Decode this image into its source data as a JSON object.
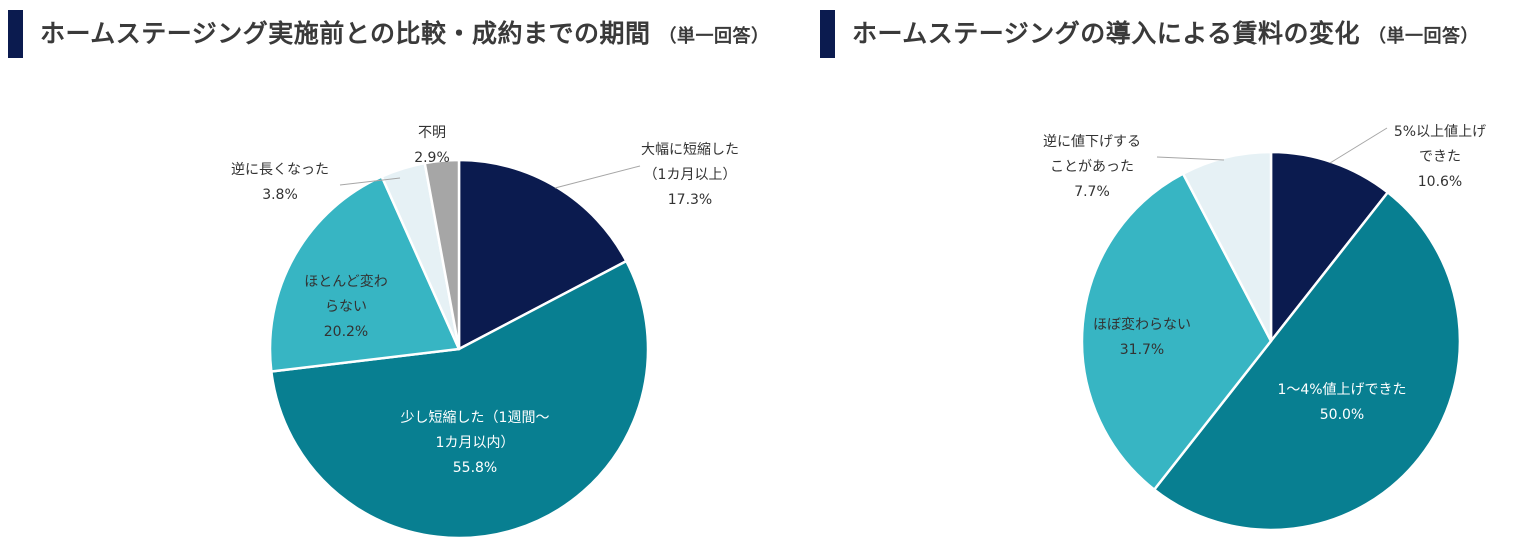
{
  "chart_data": [
    {
      "type": "pie",
      "title": "ホームステージング実施前との比較・成約までの期間",
      "subtitle": "（単一回答）",
      "slices": [
        {
          "label_lines": [
            "大幅に短縮した",
            "（1カ月以上）"
          ],
          "value": 17.3,
          "value_label": "17.3%",
          "color": "#0b1b4f"
        },
        {
          "label_lines": [
            "少し短縮した（1週間～",
            "1カ月以内）"
          ],
          "value": 55.8,
          "value_label": "55.8%",
          "color": "#087f91"
        },
        {
          "label_lines": [
            "ほとんど変わ",
            "らない"
          ],
          "value": 20.2,
          "value_label": "20.2%",
          "color": "#37b5c3"
        },
        {
          "label_lines": [
            "逆に長くなった"
          ],
          "value": 3.8,
          "value_label": "3.8%",
          "color": "#e6f1f5"
        },
        {
          "label_lines": [
            "不明"
          ],
          "value": 2.9,
          "value_label": "2.9%",
          "color": "#a6a6a6"
        }
      ]
    },
    {
      "type": "pie",
      "title": "ホームステージングの導入による賃料の変化",
      "subtitle": "（単一回答）",
      "slices": [
        {
          "label_lines": [
            "5%以上値上げ",
            "できた"
          ],
          "value": 10.6,
          "value_label": "10.6%",
          "color": "#0b1b4f"
        },
        {
          "label_lines": [
            "1～4%値上げできた"
          ],
          "value": 50.0,
          "value_label": "50.0%",
          "color": "#087f91"
        },
        {
          "label_lines": [
            "ほぼ変わらない"
          ],
          "value": 31.7,
          "value_label": "31.7%",
          "color": "#37b5c3"
        },
        {
          "label_lines": [
            "逆に値下げする",
            "ことがあった"
          ],
          "value": 7.7,
          "value_label": "7.7%",
          "color": "#e6f1f5"
        }
      ]
    }
  ]
}
